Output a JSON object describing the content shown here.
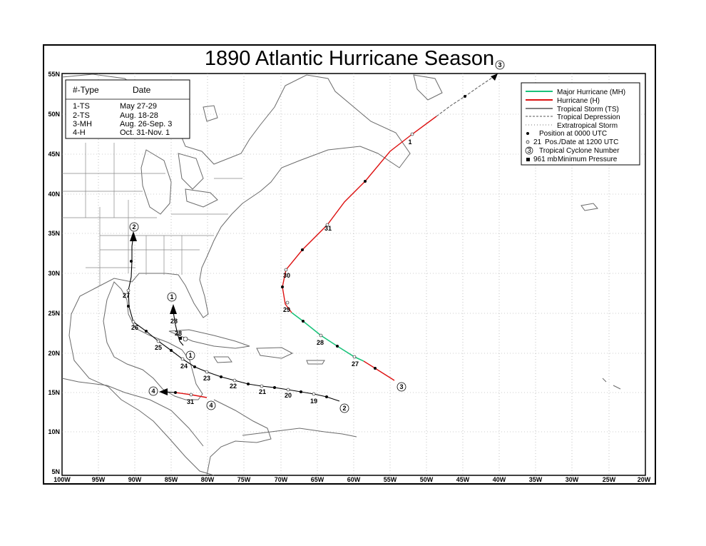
{
  "title": "1890 Atlantic Hurricane Season",
  "axes": {
    "lon_labels": [
      "100W",
      "95W",
      "90W",
      "85W",
      "80W",
      "75W",
      "70W",
      "65W",
      "60W",
      "55W",
      "50W",
      "45W",
      "40W",
      "35W",
      "30W",
      "25W",
      "20W"
    ],
    "lat_labels": [
      "5N",
      "10N",
      "15N",
      "20N",
      "25N",
      "30N",
      "35N",
      "40N",
      "45N",
      "50N",
      "55N"
    ]
  },
  "storm_table": {
    "header_type": "#-Type",
    "header_date": "Date",
    "rows": [
      {
        "type": "1-TS",
        "date": "May 27-29"
      },
      {
        "type": "2-TS",
        "date": "Aug. 18-28"
      },
      {
        "type": "3-MH",
        "date": "Aug. 26-Sep. 3"
      },
      {
        "type": "4-H",
        "date": "Oct. 31-Nov. 1"
      }
    ]
  },
  "legend": {
    "items": [
      {
        "label": "Major Hurricane (MH)",
        "color": "#19c27a"
      },
      {
        "label": "Hurricane (H)",
        "color": "#dd1111"
      },
      {
        "label": "Tropical Storm (TS)",
        "color": "#000000"
      },
      {
        "label": "Tropical Depression",
        "color": "#555555"
      },
      {
        "label": "Extratropical Storm",
        "color": "#777777"
      }
    ],
    "position_0000": "Position at 0000 UTC",
    "pos_1200_num": "21",
    "pos_1200_text": "Pos./Date at 1200 UTC",
    "cyclone_num_symbol": "3",
    "cyclone_num_text": "Tropical Cyclone Number",
    "pressure_value": "961 mb",
    "pressure_text": "Minimum Pressure"
  },
  "storm_numbers": [
    "1",
    "2",
    "3",
    "4"
  ],
  "date_labels": {
    "storm1": [
      "28"
    ],
    "storm2": [
      "19",
      "20",
      "21",
      "22",
      "23",
      "24",
      "25",
      "26",
      "27"
    ],
    "storm3": [
      "27",
      "28",
      "29",
      "30",
      "31",
      "1"
    ],
    "storm4": [
      "31"
    ]
  }
}
